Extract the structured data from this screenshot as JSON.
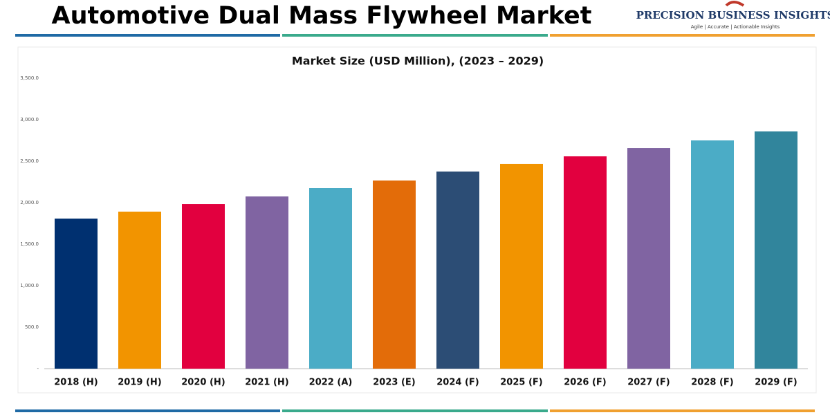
{
  "header": {
    "title": "Automotive Dual Mass Flywheel Market",
    "brand": "PRECISION BUSINESS INSIGHTS",
    "tagline": "Agile | Accurate | Actionable Insights"
  },
  "chart_data": {
    "type": "bar",
    "title": "Market Size (USD Million), (2023 – 2029)",
    "categories": [
      "2018 (H)",
      "2019 (H)",
      "2020 (H)",
      "2021 (H)",
      "2022 (A)",
      "2023 (E)",
      "2024 (F)",
      "2025 (F)",
      "2026 (F)",
      "2027 (F)",
      "2028 (F)",
      "2029 (F)"
    ],
    "values": [
      1808,
      1892,
      1983,
      2075,
      2175,
      2267,
      2375,
      2467,
      2558,
      2658,
      2750,
      2858
    ],
    "colors": [
      "#003070",
      "#f29400",
      "#e2003f",
      "#8064a2",
      "#4bacc6",
      "#e36c09",
      "#2c4d75",
      "#f29400",
      "#e2003f",
      "#8064a2",
      "#4bacc6",
      "#31859c"
    ],
    "ylim": [
      0,
      3500
    ],
    "yticks": [
      {
        "value": 0,
        "label": "-"
      },
      {
        "value": 500,
        "label": "500.0"
      },
      {
        "value": 1000,
        "label": "1,000.0"
      },
      {
        "value": 1500,
        "label": "1,500.0"
      },
      {
        "value": 2000,
        "label": "2,000.0"
      },
      {
        "value": 2500,
        "label": "2,500.0"
      },
      {
        "value": 3000,
        "label": "3,000.0"
      },
      {
        "value": 3500,
        "label": "3,500.0"
      }
    ],
    "grid": false
  }
}
